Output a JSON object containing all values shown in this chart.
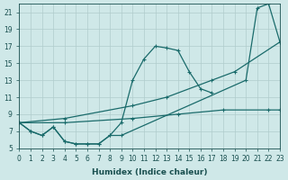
{
  "xlabel": "Humidex (Indice chaleur)",
  "ylabel": "",
  "bg_color": "#cfe8e8",
  "grid_color": "#b0cccc",
  "line_color": "#1a6b6b",
  "xmin": 0,
  "xmax": 23,
  "ymin": 5,
  "ymax": 22,
  "yticks": [
    5,
    7,
    9,
    11,
    13,
    15,
    17,
    19,
    21
  ],
  "series": [
    {
      "x": [
        0,
        1,
        2,
        3,
        4,
        5,
        6,
        7,
        8,
        9,
        10,
        11,
        12,
        13,
        14,
        15,
        16,
        17
      ],
      "y": [
        8,
        7,
        6.5,
        7.5,
        5.8,
        5.5,
        5.5,
        5.5,
        6.5,
        8,
        13,
        15.5,
        17,
        16.8,
        16.5,
        14,
        12,
        11.5
      ]
    },
    {
      "x": [
        0,
        1,
        2,
        3,
        4,
        5,
        6,
        7,
        8,
        9,
        20,
        21,
        22,
        23
      ],
      "y": [
        8,
        7,
        6.5,
        7.5,
        5.8,
        5.5,
        5.5,
        5.5,
        6.5,
        6.5,
        13,
        21.5,
        22,
        17.5
      ]
    },
    {
      "x": [
        0,
        4,
        10,
        13,
        17,
        19,
        23
      ],
      "y": [
        8,
        8.5,
        10,
        11,
        13,
        14,
        17.5
      ]
    },
    {
      "x": [
        0,
        4,
        10,
        14,
        18,
        22,
        23
      ],
      "y": [
        8,
        8,
        8.5,
        9,
        9.5,
        9.5,
        9.5
      ]
    }
  ]
}
